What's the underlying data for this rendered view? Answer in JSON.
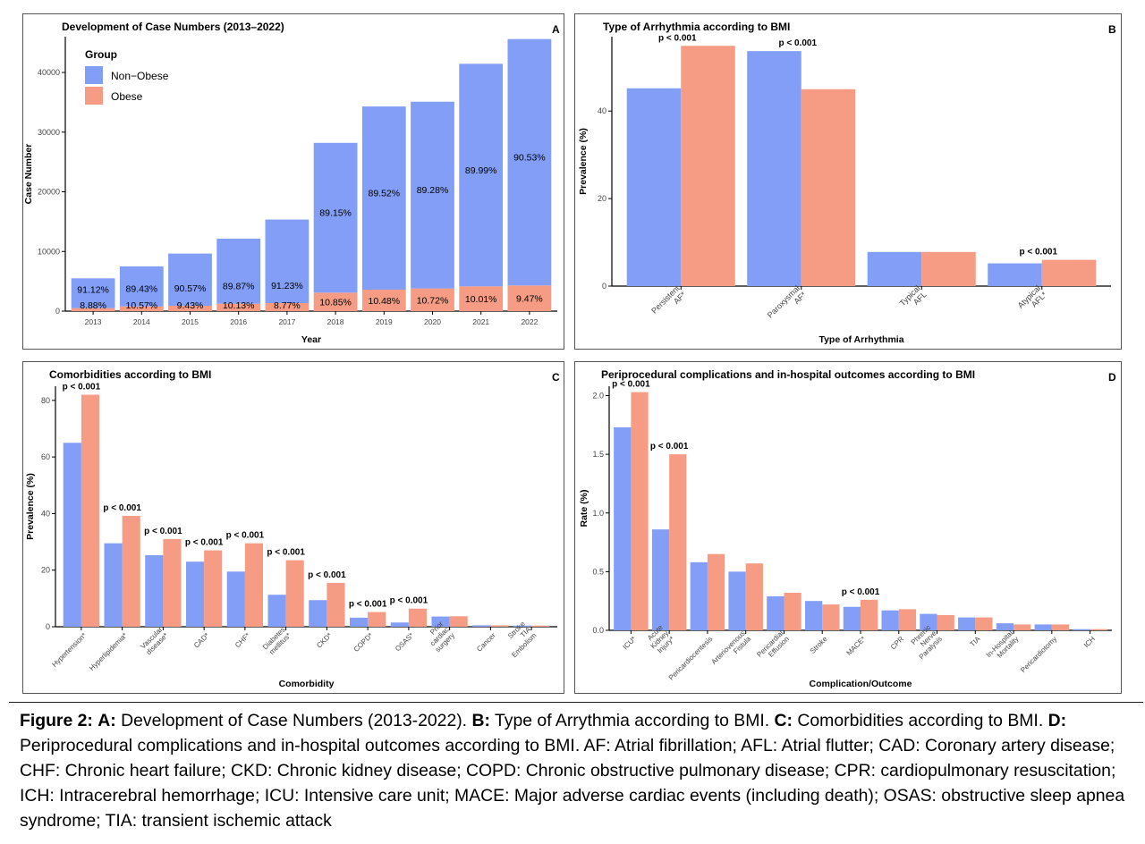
{
  "colors": {
    "non_obese": "#829ef7",
    "obese": "#f79c84"
  },
  "caption": {
    "figure_label": "Figure 2:",
    "a_label": "A:",
    "a_text": "Development of Case Numbers (2013-2022).",
    "b_label": "B:",
    "b_text": "Type of Arrythmia according to BMI.",
    "c_label": "C:",
    "c_text": "Comorbidities according to BMI.",
    "d_label": "D:",
    "d_text": "Periprocedural complications and in-hospital outcomes according to BMI. AF: Atrial fibrillation; AFL: Atrial flutter; CAD: Coronary artery disease; CHF: Chronic heart failure; CKD: Chronic kidney disease; COPD: Chronic obstructive pulmonary disease; CPR: cardiopulmonary resuscitation; ICH: Intracerebral hemorrhage; ICU: Intensive care unit; MACE: Major adverse cardiac events (including death); OSAS: obstructive sleep apnea syndrome; TIA: transient ischemic attack"
  },
  "chart_data": [
    {
      "panel": "A",
      "type": "bar",
      "stacked": true,
      "title": "Development of Case Numbers (2013–2022)",
      "xlabel": "Year",
      "ylabel": "Case Number",
      "legend_title": "Group",
      "legend_position": "top-left",
      "categories": [
        "2013",
        "2014",
        "2015",
        "2016",
        "2017",
        "2018",
        "2019",
        "2020",
        "2021",
        "2022"
      ],
      "series": [
        {
          "name": "Non−Obese",
          "values": [
            5000,
            6700,
            8750,
            10900,
            14000,
            25100,
            30700,
            31300,
            37300,
            41300
          ],
          "labels": [
            "91.12%",
            "89.43%",
            "90.57%",
            "89.87%",
            "91.23%",
            "89.15%",
            "89.52%",
            "89.28%",
            "89.99%",
            "90.53%"
          ]
        },
        {
          "name": "Obese",
          "values": [
            500,
            800,
            900,
            1250,
            1350,
            3100,
            3600,
            3800,
            4150,
            4300
          ],
          "labels": [
            "8.88%",
            "10.57%",
            "9.43%",
            "10.13%",
            "8.77%",
            "10.85%",
            "10.48%",
            "10.72%",
            "10.01%",
            "9.47%"
          ]
        }
      ],
      "yticks": [
        0,
        10000,
        20000,
        30000,
        40000
      ],
      "ylim": [
        0,
        46000
      ],
      "grid": false
    },
    {
      "panel": "B",
      "type": "bar",
      "title": "Type of Arrhythmia according to BMI",
      "xlabel": "Type of Arrhythmia",
      "ylabel": "Prevalence (%)",
      "categories": [
        "Persistent AF*",
        "Paroxysmal AF*",
        "Typical AFL",
        "Atypical AFL*"
      ],
      "series": [
        {
          "name": "Non−Obese",
          "values": [
            45.2,
            53.7,
            7.8,
            5.2
          ]
        },
        {
          "name": "Obese",
          "values": [
            54.9,
            45.0,
            7.8,
            6.0
          ]
        }
      ],
      "annotations": [
        "p < 0.001",
        "p < 0.001",
        "",
        "p < 0.001"
      ],
      "yticks": [
        0,
        20,
        40
      ],
      "ylim": [
        0,
        57
      ],
      "grid": false
    },
    {
      "panel": "C",
      "type": "bar",
      "title": "Comorbidities according to BMI",
      "xlabel": "Comorbidity",
      "ylabel": "Prevalence (%)",
      "categories": [
        "Hypertension*",
        "Hyperlipidemia*",
        "Vascular disease*",
        "CAD*",
        "CHF*",
        "Diabetes mellitus*",
        "CKD*",
        "COPD*",
        "OSAS*",
        "Prior cardiac surgery",
        "Cancer",
        "Stroke TIA Embolism"
      ],
      "series": [
        {
          "name": "Non−Obese",
          "values": [
            65,
            29.5,
            25.3,
            23,
            19.5,
            11.3,
            9.4,
            3.2,
            1.5,
            3.6,
            0.5,
            0.4
          ]
        },
        {
          "name": "Obese",
          "values": [
            82,
            39.2,
            31,
            27,
            29.5,
            23.5,
            15.5,
            5.2,
            6.4,
            3.7,
            0.5,
            0.4
          ]
        }
      ],
      "annotations": [
        "p < 0.001",
        "p < 0.001",
        "p < 0.001",
        "p < 0.001",
        "p < 0.001",
        "p < 0.001",
        "p < 0.001",
        "p < 0.001",
        "p < 0.001",
        "",
        "",
        ""
      ],
      "yticks": [
        0,
        20,
        40,
        60,
        80
      ],
      "ylim": [
        0,
        85
      ],
      "grid": false
    },
    {
      "panel": "D",
      "type": "bar",
      "title": "Periprocedural complications and in-hospital outcomes according to BMI",
      "xlabel": "Complication/Outcome",
      "ylabel": "Rate (%)",
      "categories": [
        "ICU*",
        "Acute Kidney Injury*",
        "Pericardiocentesis",
        "Arteriovenous Fistula",
        "Pericardial Effusion",
        "Stroke",
        "MACE*",
        "CPR",
        "Phrenic Nerve Paralysis",
        "TIA",
        "In-Hospital Mortality",
        "Pericardiotomy",
        "ICH"
      ],
      "series": [
        {
          "name": "Non−Obese",
          "values": [
            1.73,
            0.86,
            0.58,
            0.5,
            0.29,
            0.25,
            0.2,
            0.17,
            0.14,
            0.11,
            0.06,
            0.05,
            0.01
          ]
        },
        {
          "name": "Obese",
          "values": [
            2.03,
            1.5,
            0.65,
            0.57,
            0.32,
            0.22,
            0.26,
            0.18,
            0.13,
            0.11,
            0.05,
            0.05,
            0.01
          ]
        }
      ],
      "annotations": [
        "p < 0.001",
        "p < 0.001",
        "",
        "",
        "",
        "",
        "p < 0.001",
        "",
        "",
        "",
        "",
        "",
        ""
      ],
      "yticks": [
        0.0,
        0.5,
        1.0,
        1.5,
        2.0
      ],
      "ytick_labels": [
        "0.0",
        "0.5",
        "1.0",
        "1.5",
        "2.0"
      ],
      "ylim": [
        0,
        2.08
      ],
      "grid": false
    }
  ]
}
